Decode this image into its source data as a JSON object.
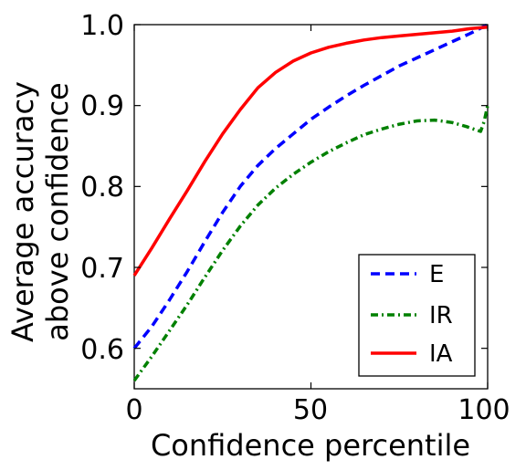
{
  "chart_data": {
    "type": "line",
    "title": "",
    "xlabel": "Confidence percentile",
    "ylabel": [
      "Average accuracy",
      "above confidence"
    ],
    "xlim": [
      0,
      100
    ],
    "ylim": [
      0.55,
      1.0
    ],
    "xticks": [
      0,
      50,
      100
    ],
    "yticks": [
      0.6,
      0.7,
      0.8,
      0.9,
      1.0
    ],
    "xtick_labels": [
      "0",
      "50",
      "100"
    ],
    "ytick_labels": [
      "0.6",
      "0.7",
      "0.8",
      "0.9",
      "1.0"
    ],
    "grid": false,
    "legend_position": "lower-right",
    "series": [
      {
        "name": "E",
        "color": "#0000ff",
        "style": "dashed",
        "x": [
          0,
          5,
          10,
          15,
          20,
          25,
          30,
          35,
          40,
          45,
          50,
          55,
          60,
          65,
          70,
          75,
          80,
          85,
          90,
          95,
          100
        ],
        "y": [
          0.6,
          0.627,
          0.66,
          0.695,
          0.732,
          0.768,
          0.8,
          0.826,
          0.847,
          0.865,
          0.883,
          0.898,
          0.912,
          0.925,
          0.937,
          0.949,
          0.959,
          0.969,
          0.979,
          0.989,
          1.0
        ]
      },
      {
        "name": "IR",
        "color": "#008000",
        "style": "dashdot",
        "x": [
          0,
          5,
          10,
          15,
          20,
          25,
          30,
          35,
          40,
          45,
          50,
          55,
          60,
          65,
          70,
          75,
          80,
          85,
          90,
          94,
          96,
          98,
          99,
          100
        ],
        "y": [
          0.56,
          0.59,
          0.622,
          0.654,
          0.688,
          0.721,
          0.751,
          0.777,
          0.798,
          0.815,
          0.83,
          0.843,
          0.854,
          0.864,
          0.871,
          0.877,
          0.881,
          0.882,
          0.879,
          0.874,
          0.871,
          0.868,
          0.88,
          0.9
        ]
      },
      {
        "name": "IA",
        "color": "#ff0000",
        "style": "solid",
        "x": [
          0,
          5,
          10,
          15,
          20,
          25,
          30,
          35,
          40,
          45,
          50,
          55,
          60,
          65,
          70,
          75,
          80,
          85,
          90,
          95,
          100
        ],
        "y": [
          0.69,
          0.724,
          0.76,
          0.795,
          0.831,
          0.865,
          0.895,
          0.922,
          0.941,
          0.955,
          0.965,
          0.972,
          0.977,
          0.981,
          0.984,
          0.986,
          0.988,
          0.99,
          0.992,
          0.995,
          0.997
        ]
      }
    ]
  }
}
